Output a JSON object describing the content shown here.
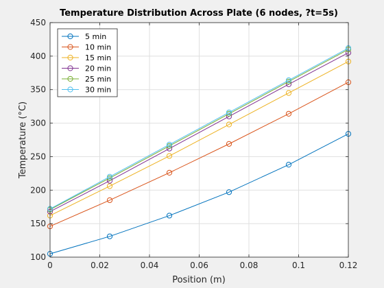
{
  "chart_data": {
    "type": "line",
    "title": "Temperature Distribution Across Plate (6 nodes, ?t=5s)",
    "xlabel": "Position (m)",
    "ylabel": "Temperature (°C)",
    "xlim": [
      0,
      0.12
    ],
    "ylim": [
      100,
      450
    ],
    "x_ticks": [
      "0",
      "0.02",
      "0.04",
      "0.06",
      "0.08",
      "0.1",
      "0.12"
    ],
    "y_ticks": [
      "100",
      "150",
      "200",
      "250",
      "300",
      "350",
      "400",
      "450"
    ],
    "grid": true,
    "legend_position": "top-left",
    "x": [
      0,
      0.024,
      0.048,
      0.072,
      0.096,
      0.12
    ],
    "series": [
      {
        "name": "5 min",
        "color": "#0072bd",
        "values": [
          105,
          131,
          162,
          197,
          238,
          284
        ]
      },
      {
        "name": "10 min",
        "color": "#d95319",
        "values": [
          146,
          185,
          226,
          269,
          314,
          361
        ]
      },
      {
        "name": "15 min",
        "color": "#edb120",
        "values": [
          162,
          206,
          251,
          298,
          345,
          392
        ]
      },
      {
        "name": "20 min",
        "color": "#7e2f8e",
        "values": [
          168,
          214,
          262,
          310,
          358,
          405
        ]
      },
      {
        "name": "25 min",
        "color": "#77ac30",
        "values": [
          171,
          218,
          266,
          314,
          362,
          410
        ]
      },
      {
        "name": "30 min",
        "color": "#4dbeee",
        "values": [
          172,
          220,
          268,
          316,
          364,
          412
        ]
      }
    ]
  }
}
